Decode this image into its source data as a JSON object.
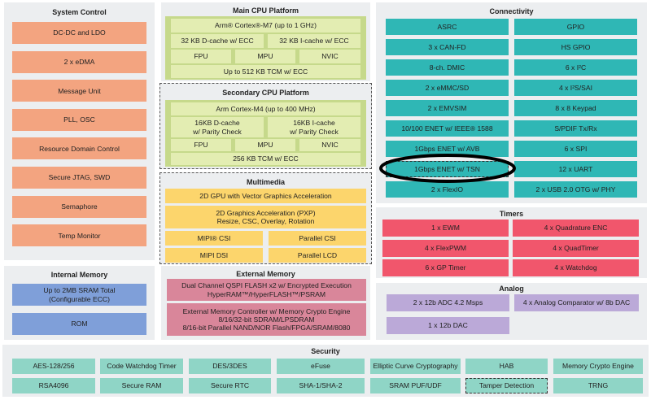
{
  "colors": {
    "system_control": "#f3a480",
    "internal_memory": "#7f9fd9",
    "cpu": "#c6d98b",
    "multimedia": "#fcd56c",
    "external_memory": "#d9869a",
    "connectivity": "#2fb7b5",
    "timers": "#f1566c",
    "analog": "#bba9d8",
    "security": "#8fd5c6"
  },
  "system_control": {
    "title": "System Control",
    "items": [
      "DC-DC and LDO",
      "2 x eDMA",
      "Message Unit",
      "PLL, OSC",
      "Resource Domain Control",
      "Secure JTAG, SWD",
      "Semaphore",
      "Temp Monitor"
    ]
  },
  "internal_memory": {
    "title": "Internal Memory",
    "items": [
      "Up to 2MB SRAM Total\n(Configurable ECC)",
      "ROM"
    ]
  },
  "main_cpu": {
    "title": "Main CPU Platform",
    "core": "Arm® Cortex®-M7 (up to 1 GHz)",
    "dcache": "32 KB D-cache w/ ECC",
    "icache": "32 KB I-cache w/ ECC",
    "fpu": "FPU",
    "mpu": "MPU",
    "nvic": "NVIC",
    "tcm": "Up to 512 KB TCM w/ ECC"
  },
  "secondary_cpu": {
    "title": "Secondary CPU Platform",
    "core": "Arm Cortex-M4 (up to 400 MHz)",
    "dcache": "16KB D-cache\nw/ Parity Check",
    "icache": "16KB I-cache\nw/ Parity Check",
    "fpu": "FPU",
    "mpu": "MPU",
    "nvic": "NVIC",
    "tcm": "256 KB TCM w/ ECC"
  },
  "multimedia": {
    "title": "Multimedia",
    "gpu": "2D GPU with Vector Graphics Acceleration",
    "pxp": "2D Graphics Acceleration (PXP)\nResize, CSC, Overlay, Rotation",
    "mipi_csi": "MIPI® CSI",
    "parallel_csi": "Parallel CSI",
    "mipi_dsi": "MIPI DSI",
    "parallel_lcd": "Parallel LCD"
  },
  "external_memory": {
    "title": "External Memory",
    "items": [
      "Dual Channel QSPI FLASH x2 w/ Encrypted Execution\nHyperRAM™/HyperFLASH™/PSRAM",
      "External Memory Controller w/ Memory Crypto Engine\n8/16/32-bit SDRAM/LPSDRAM\n8/16-bit Parallel NAND/NOR Flash/FPGA/SRAM/8080"
    ]
  },
  "connectivity": {
    "title": "Connectivity",
    "left": [
      "ASRC",
      "3 x CAN-FD",
      "8-ch. DMIC",
      "2 x eMMC/SD",
      "2 x EMVSIM",
      "10/100 ENET w/ IEEE® 1588",
      "1Gbps ENET w/ AVB",
      "1Gbps ENET w/ TSN",
      "2 x FlexIO"
    ],
    "right": [
      "GPIO",
      "HS GPIO",
      "6 x I²C",
      "4 x I²S/SAI",
      "8 x 8 Keypad",
      "S/PDIF Tx/Rx",
      "6 x SPI",
      "12 x UART",
      "2 x USB 2.0 OTG w/ PHY"
    ],
    "highlighted": "1Gbps ENET w/ TSN"
  },
  "timers": {
    "title": "Timers",
    "left": [
      "1 x EWM",
      "4 x FlexPWM",
      "6 x GP Timer"
    ],
    "right": [
      "4 x Quadrature ENC",
      "4 x QuadTimer",
      "4 x Watchdog"
    ]
  },
  "analog": {
    "title": "Analog",
    "items": [
      "2 x 12b ADC 4.2 Msps",
      "4 x Analog Comparator w/ 8b DAC",
      "1 x 12b DAC"
    ]
  },
  "security": {
    "title": "Security",
    "row1": [
      "AES-128/256",
      "Code Watchdog Timer",
      "DES/3DES",
      "eFuse",
      "Elliptic Curve Cryptography",
      "HAB",
      "Memory Crypto Engine"
    ],
    "row2": [
      "RSA4096",
      "Secure RAM",
      "Secure RTC",
      "SHA-1/SHA-2",
      "SRAM PUF/UDF",
      "Tamper Detection",
      "TRNG"
    ]
  }
}
